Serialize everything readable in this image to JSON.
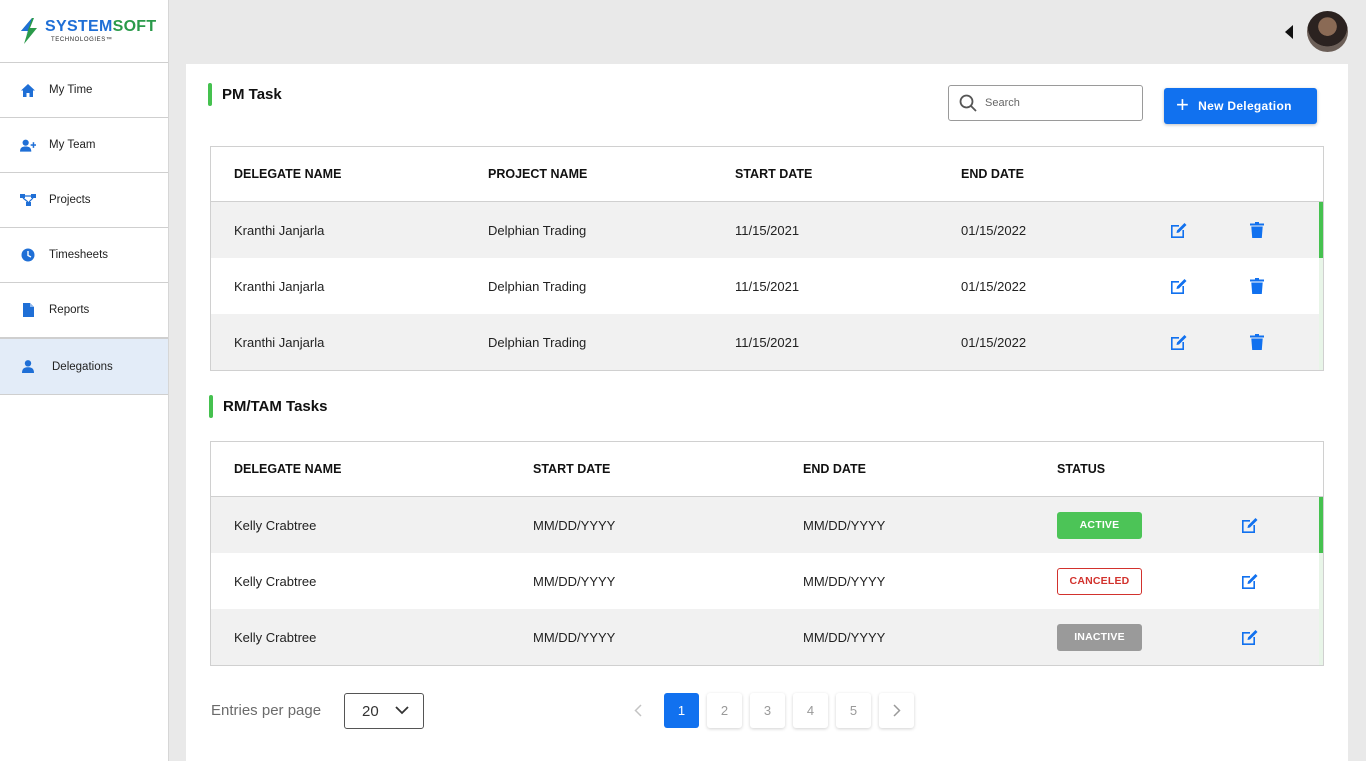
{
  "brand": {
    "name_part1": "SYSTEM",
    "name_part2": "SOFT",
    "subtitle": "TECHNOLOGIES™"
  },
  "sidebar": {
    "items": [
      {
        "label": "My Time",
        "icon": "home-icon"
      },
      {
        "label": "My Team",
        "icon": "add-user-icon"
      },
      {
        "label": "Projects",
        "icon": "project-tree-icon"
      },
      {
        "label": "Timesheets",
        "icon": "clock-icon"
      },
      {
        "label": "Reports",
        "icon": "document-icon"
      },
      {
        "label": "Delegations",
        "icon": "user-icon",
        "active": true
      }
    ]
  },
  "header": {
    "avatar": "user-avatar"
  },
  "pm_section": {
    "title": "PM Task",
    "search_placeholder": "Search",
    "new_button_label": "New Delegation",
    "columns": [
      "DELEGATE NAME",
      "PROJECT NAME",
      "START DATE",
      "END DATE"
    ],
    "rows": [
      {
        "delegate": "Kranthi Janjarla",
        "project": "Delphian Trading",
        "start": "11/15/2021",
        "end": "01/15/2022"
      },
      {
        "delegate": "Kranthi Janjarla",
        "project": "Delphian Trading",
        "start": "11/15/2021",
        "end": "01/15/2022"
      },
      {
        "delegate": "Kranthi Janjarla",
        "project": "Delphian Trading",
        "start": "11/15/2021",
        "end": "01/15/2022"
      }
    ]
  },
  "rm_section": {
    "title": "RM/TAM Tasks",
    "columns": [
      "DELEGATE NAME",
      "START DATE",
      "END DATE",
      "STATUS"
    ],
    "rows": [
      {
        "delegate": "Kelly Crabtree",
        "start": "MM/DD/YYYY",
        "end": "MM/DD/YYYY",
        "status": "ACTIVE"
      },
      {
        "delegate": "Kelly Crabtree",
        "start": "MM/DD/YYYY",
        "end": "MM/DD/YYYY",
        "status": "CANCELED"
      },
      {
        "delegate": "Kelly Crabtree",
        "start": "MM/DD/YYYY",
        "end": "MM/DD/YYYY",
        "status": "INACTIVE"
      }
    ]
  },
  "footer": {
    "entries_label": "Entries per page",
    "entries_value": "20",
    "pages": [
      "1",
      "2",
      "3",
      "4",
      "5"
    ],
    "current_page": "1"
  },
  "colors": {
    "accent": "#1171ef",
    "green": "#45c14f",
    "danger": "#d2322d"
  }
}
